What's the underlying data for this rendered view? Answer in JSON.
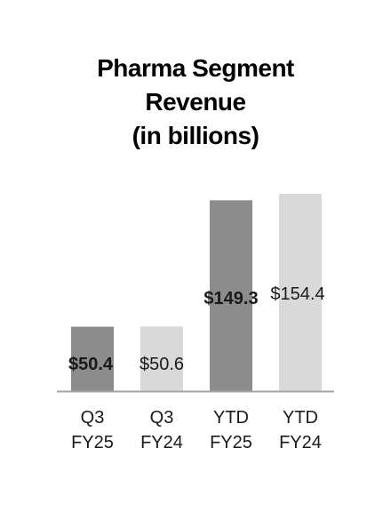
{
  "chart_data": {
    "type": "bar",
    "title_lines": [
      "Pharma Segment",
      "Revenue",
      "(in billions)"
    ],
    "categories": [
      [
        "Q3",
        "FY25"
      ],
      [
        "Q3",
        "FY24"
      ],
      [
        "YTD",
        "FY25"
      ],
      [
        "YTD",
        "FY24"
      ]
    ],
    "values": [
      50.4,
      50.6,
      149.3,
      154.4
    ],
    "value_labels": [
      "$50.4",
      "$50.6",
      "$149.3",
      "$154.4"
    ],
    "label_bold": [
      true,
      false,
      true,
      false
    ],
    "bar_colors": [
      "#8c8c8c",
      "#d9d9d9",
      "#8c8c8c",
      "#d9d9d9"
    ],
    "axis_color": "#a6a6a6",
    "ylim": [
      0,
      154.4
    ],
    "grid": false,
    "legend": "none"
  }
}
